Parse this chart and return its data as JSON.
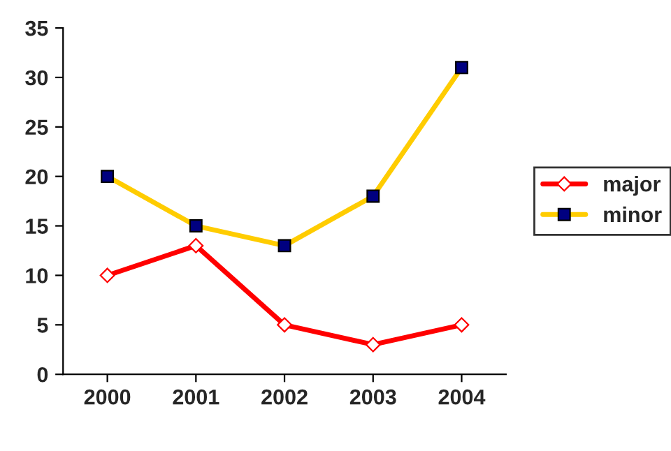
{
  "chart_data": {
    "type": "line",
    "categories": [
      "2000",
      "2001",
      "2002",
      "2003",
      "2004"
    ],
    "series": [
      {
        "name": "major",
        "color": "#ff0000",
        "marker": "diamond",
        "values": [
          10,
          13,
          5,
          3,
          5
        ]
      },
      {
        "name": "minor",
        "color": "#ffcc00",
        "marker": "square",
        "values": [
          20,
          15,
          13,
          18,
          31
        ]
      }
    ],
    "ylim": [
      0,
      35
    ],
    "yticks": [
      0,
      5,
      10,
      15,
      20,
      25,
      30,
      35
    ],
    "grid": false,
    "legend": "right",
    "line_style": "solid"
  }
}
